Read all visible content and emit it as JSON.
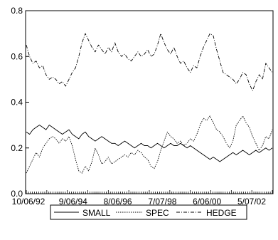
{
  "chart_data": {
    "type": "line",
    "title": "",
    "xlabel": "",
    "ylabel": "",
    "ylim": [
      0.0,
      0.8
    ],
    "yticks": [
      "0.0",
      "0.2",
      "0.4",
      "0.6",
      "0.8"
    ],
    "xticks": [
      "10/06/92",
      "9/06/94",
      "8/06/96",
      "7/07/98",
      "6/06/00",
      "5/07/02"
    ],
    "grid": false,
    "legend_position": "bottom-center",
    "series": [
      {
        "name": "SMALL",
        "style": "solid",
        "color": "#000000",
        "values": [
          0.27,
          0.26,
          0.28,
          0.29,
          0.3,
          0.29,
          0.28,
          0.3,
          0.29,
          0.28,
          0.27,
          0.26,
          0.27,
          0.28,
          0.26,
          0.25,
          0.24,
          0.26,
          0.27,
          0.25,
          0.24,
          0.23,
          0.24,
          0.25,
          0.24,
          0.23,
          0.22,
          0.22,
          0.21,
          0.22,
          0.23,
          0.22,
          0.21,
          0.2,
          0.21,
          0.22,
          0.21,
          0.21,
          0.2,
          0.21,
          0.22,
          0.21,
          0.2,
          0.21,
          0.22,
          0.21,
          0.21,
          0.22,
          0.21,
          0.2,
          0.21,
          0.2,
          0.19,
          0.18,
          0.17,
          0.16,
          0.15,
          0.16,
          0.15,
          0.14,
          0.15,
          0.16,
          0.17,
          0.18,
          0.17,
          0.18,
          0.19,
          0.18,
          0.17,
          0.18,
          0.19,
          0.18,
          0.19,
          0.2,
          0.19,
          0.2
        ]
      },
      {
        "name": "SPEC",
        "style": "dotted",
        "color": "#000000",
        "values": [
          0.09,
          0.12,
          0.15,
          0.18,
          0.16,
          0.2,
          0.22,
          0.24,
          0.25,
          0.24,
          0.22,
          0.24,
          0.23,
          0.25,
          0.21,
          0.15,
          0.1,
          0.09,
          0.12,
          0.1,
          0.14,
          0.2,
          0.17,
          0.13,
          0.14,
          0.16,
          0.13,
          0.14,
          0.15,
          0.16,
          0.17,
          0.16,
          0.18,
          0.17,
          0.19,
          0.18,
          0.16,
          0.15,
          0.12,
          0.11,
          0.14,
          0.19,
          0.23,
          0.27,
          0.25,
          0.24,
          0.22,
          0.23,
          0.21,
          0.22,
          0.24,
          0.23,
          0.26,
          0.3,
          0.33,
          0.32,
          0.34,
          0.31,
          0.28,
          0.27,
          0.25,
          0.22,
          0.2,
          0.23,
          0.3,
          0.32,
          0.34,
          0.31,
          0.29,
          0.25,
          0.22,
          0.19,
          0.21,
          0.25,
          0.24,
          0.28
        ]
      },
      {
        "name": "HEDGE",
        "style": "dashdot",
        "color": "#000000",
        "values": [
          0.65,
          0.6,
          0.57,
          0.58,
          0.55,
          0.56,
          0.52,
          0.5,
          0.51,
          0.5,
          0.48,
          0.49,
          0.47,
          0.5,
          0.53,
          0.55,
          0.6,
          0.66,
          0.7,
          0.67,
          0.64,
          0.62,
          0.65,
          0.63,
          0.61,
          0.64,
          0.62,
          0.66,
          0.62,
          0.6,
          0.61,
          0.59,
          0.58,
          0.6,
          0.62,
          0.6,
          0.61,
          0.63,
          0.6,
          0.61,
          0.65,
          0.7,
          0.66,
          0.63,
          0.61,
          0.64,
          0.6,
          0.57,
          0.58,
          0.55,
          0.53,
          0.56,
          0.55,
          0.6,
          0.64,
          0.67,
          0.7,
          0.69,
          0.63,
          0.58,
          0.53,
          0.52,
          0.51,
          0.5,
          0.48,
          0.5,
          0.53,
          0.52,
          0.48,
          0.45,
          0.49,
          0.52,
          0.5,
          0.57,
          0.55,
          0.53
        ]
      }
    ]
  }
}
